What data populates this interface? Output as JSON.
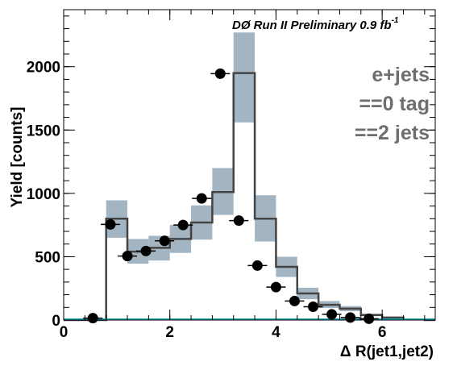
{
  "chart_data": {
    "type": "histogram",
    "title": "DØ Run II Preliminary 0.9 fb",
    "title_superscript": "-1",
    "xlabel": "Δ R(jet1,jet2)",
    "ylabel": "Yield [counts]",
    "xlim": [
      0,
      7
    ],
    "ylim": [
      0,
      2450
    ],
    "x_ticks": [
      0,
      2,
      4,
      6
    ],
    "y_ticks": [
      0,
      500,
      1000,
      1500,
      2000
    ],
    "annotations": [
      "e+jets",
      "==0 tag",
      "==2 jets"
    ],
    "bin_edges": [
      0.0,
      0.4,
      0.8,
      1.2,
      1.6,
      2.0,
      2.4,
      2.8,
      3.2,
      3.6,
      4.0,
      4.4,
      4.8,
      5.2,
      5.6,
      6.0,
      6.4,
      6.8,
      7.0
    ],
    "series": [
      {
        "kind": "data_points",
        "x": [
          0.55,
          0.88,
          1.2,
          1.55,
          1.9,
          2.25,
          2.6,
          2.95,
          3.3,
          3.65,
          4.0,
          4.35,
          4.7,
          5.05,
          5.4,
          5.75
        ],
        "y": [
          15,
          755,
          505,
          545,
          625,
          750,
          960,
          1945,
          785,
          430,
          260,
          150,
          105,
          45,
          20,
          10
        ],
        "yerr": [
          5,
          25,
          20,
          22,
          25,
          25,
          30,
          40,
          25,
          20,
          15,
          12,
          10,
          7,
          5,
          3
        ],
        "color": "#000000"
      },
      {
        "kind": "prediction_step",
        "values": [
          0,
          0,
          800,
          540,
          570,
          640,
          770,
          1010,
          1950,
          800,
          420,
          210,
          120,
          90,
          40,
          20,
          5,
          0
        ],
        "color": "#444444"
      },
      {
        "kind": "uncertainty_band",
        "low": [
          0,
          0,
          650,
          445,
          470,
          530,
          635,
          830,
          1560,
          620,
          340,
          165,
          95,
          70,
          30,
          15,
          3,
          0
        ],
        "high": [
          0,
          0,
          945,
          640,
          665,
          750,
          905,
          1200,
          2270,
          985,
          500,
          255,
          150,
          110,
          50,
          25,
          7,
          0
        ],
        "color": "#a3b5c2"
      },
      {
        "kind": "background_line",
        "value": 5,
        "color": "#1aa7b5"
      }
    ]
  }
}
